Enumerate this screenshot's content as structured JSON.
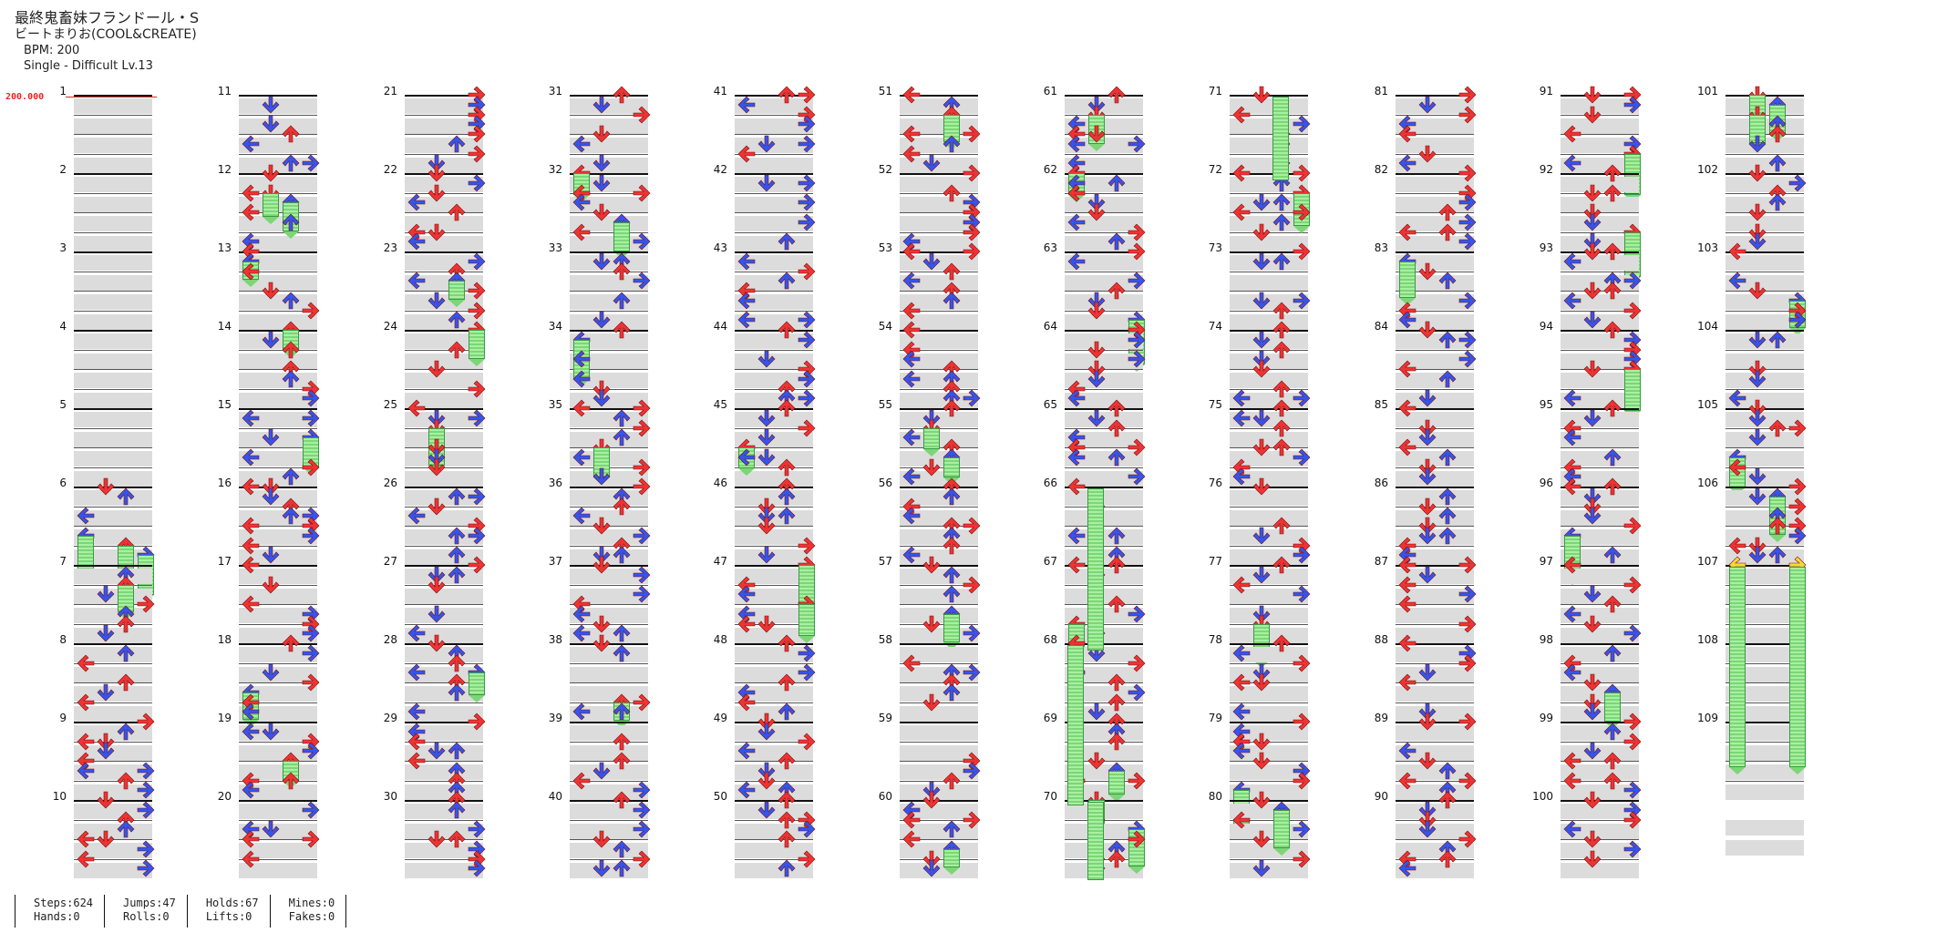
{
  "header": {
    "title": "最終鬼畜妹フランドール・S",
    "artist": "ビートまりお(COOL&CREATE)",
    "bpm": "BPM: 200",
    "difficulty": "Single - Difficult Lv.13"
  },
  "bpm_change": {
    "label": "200.000"
  },
  "chart": {
    "columns": 11,
    "measures_per_column": 10,
    "total_measures": 109,
    "lane_colors": {
      "quarter": "#ee3333",
      "eighth": "#3355ee",
      "hold": "#7cd676",
      "mine_fake": "#f2d83a"
    }
  },
  "stats": {
    "steps_label": "Steps:624",
    "hands_label": "Hands:0",
    "jumps_label": "Jumps:47",
    "rolls_label": "Rolls:0",
    "holds_label": "Holds:67",
    "lifts_label": "Lifts:0",
    "mines_label": "Mines:0",
    "fakes_label": "Fakes:0"
  }
}
